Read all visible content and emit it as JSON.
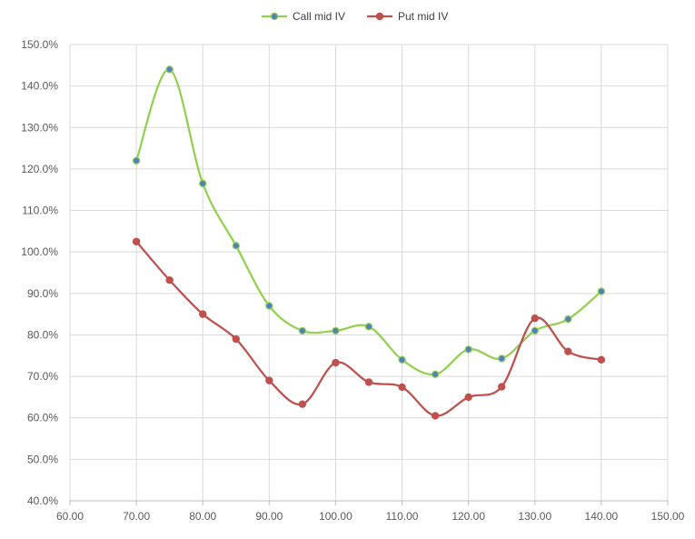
{
  "chart_data": {
    "type": "line",
    "smooth": true,
    "x": [
      70,
      75,
      80,
      85,
      90,
      95,
      100,
      105,
      110,
      115,
      120,
      125,
      130,
      135,
      140
    ],
    "xlim": [
      60,
      150
    ],
    "xticks": [
      60,
      70,
      80,
      90,
      100,
      110,
      120,
      130,
      140,
      150
    ],
    "xtick_labels": [
      "60.00",
      "70.00",
      "80.00",
      "90.00",
      "100.00",
      "110.00",
      "120.00",
      "130.00",
      "140.00",
      "150.00"
    ],
    "ylim": [
      40,
      150
    ],
    "yticks": [
      40,
      50,
      60,
      70,
      80,
      90,
      100,
      110,
      120,
      130,
      140,
      150
    ],
    "ytick_labels": [
      "40.0%",
      "50.0%",
      "60.0%",
      "70.0%",
      "80.0%",
      "90.0%",
      "100.0%",
      "110.0%",
      "120.0%",
      "130.0%",
      "140.0%",
      "150.0%"
    ],
    "grid": "vertical and horizontal major gridlines",
    "legend_position": "top-center",
    "series": [
      {
        "name": "Call mid IV",
        "color": "#92d050",
        "marker_fill": "#4f81bd",
        "values": [
          122,
          144,
          116.5,
          101.5,
          87,
          81,
          81,
          82,
          74,
          70.5,
          76.5,
          74.3,
          81,
          83.8,
          90.5
        ]
      },
      {
        "name": "Put mid IV",
        "color": "#c0504d",
        "marker_fill": "#c0504d",
        "values": [
          102.5,
          93.2,
          85,
          79,
          69,
          63.3,
          73.3,
          68.6,
          67.4,
          60.5,
          65,
          67.5,
          84,
          76,
          74
        ]
      }
    ]
  }
}
